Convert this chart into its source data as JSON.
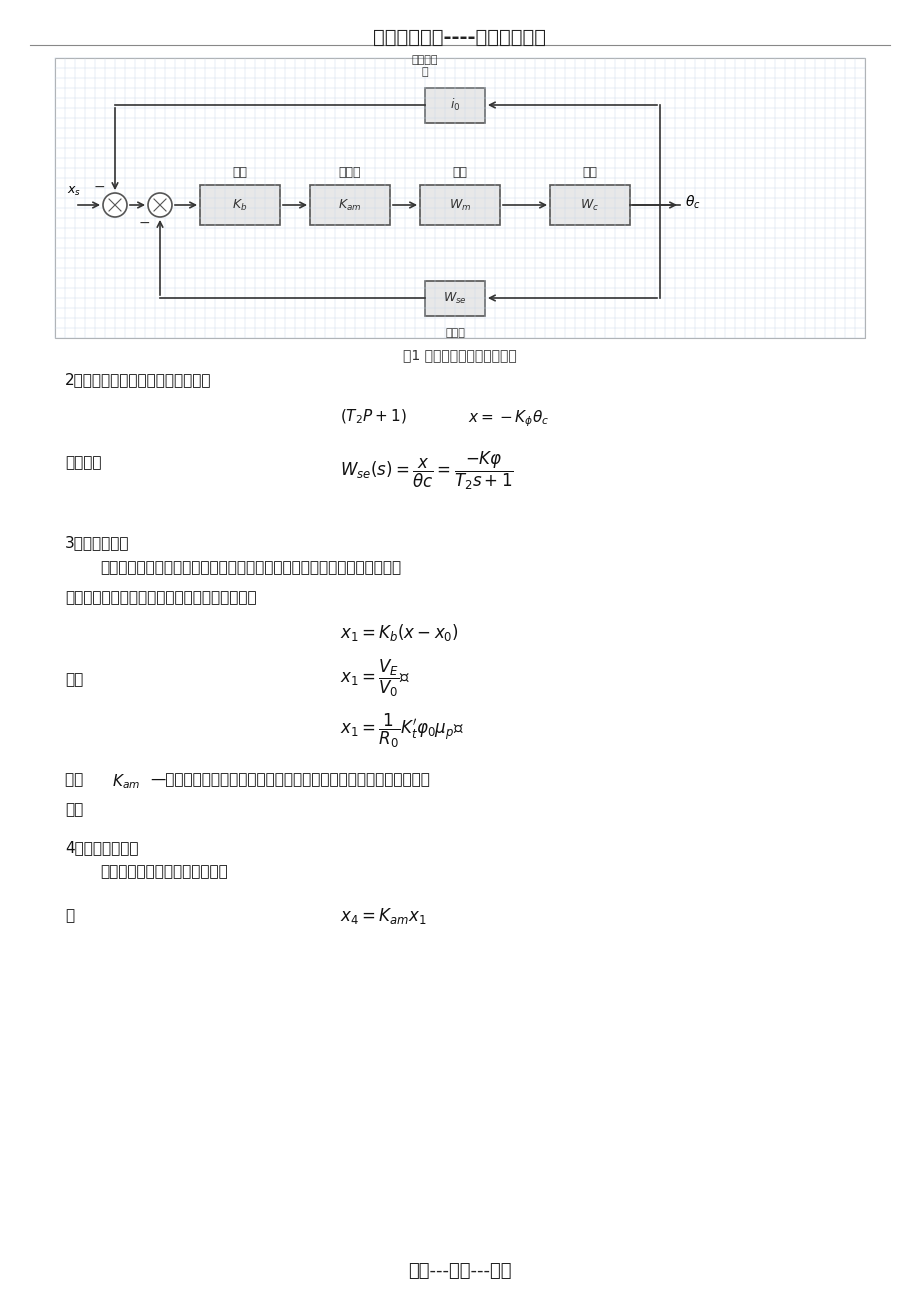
{
  "page_bg": "#ffffff",
  "header_text": "精选优质文档----倾情为你奉上",
  "footer_text": "专心---专注---专业",
  "diagram_caption": "图1 座舱温度控制系统方块图",
  "section2_title": "2．热电阻传感器的元件微分方程式",
  "section2_eq1": "$(T_2P+1)$  $x=-K_\\phi\\theta_c$",
  "section2_label": "传递函数",
  "section2_eq2": "$W_{se}(s) = \\dfrac{x}{\\theta c} = \\dfrac{-K\\varphi}{T_2s+1}$",
  "section3_title": "3．电桥方程式",
  "section3_para": "因为反馈电阻值变化引起的电桥输出电压的变化方向，总是和由热电阻传感\n元件引起的电桥输出电压的方向相反，可写出：",
  "section3_eq1": "$x_1 = K_b(x-x_0)$",
  "section3_label": "式中",
  "section3_eq2": "$x_1 = \\dfrac{V_E}{V_0}$；",
  "section3_eq3": "$x_1 = \\dfrac{1}{R_0} K_t^{\\prime} \\varphi_0 \\mu_p$；",
  "section4_intro": "式中  $K_{am}$—反馈电阻灵敏度。为电机输出单位转角变化引起的反馈电阻值变化\n量。",
  "section4_title": "4．放大器方程式",
  "section4_sub": "    采用电子式放大器，认为无惯性",
  "section4_label": "则",
  "section4_eq": "$x_4 = K_{am}x_1$",
  "grid_color": "#c8d8e8",
  "box_color": "#e8e8e8",
  "box_border": "#555555",
  "line_color": "#333333"
}
